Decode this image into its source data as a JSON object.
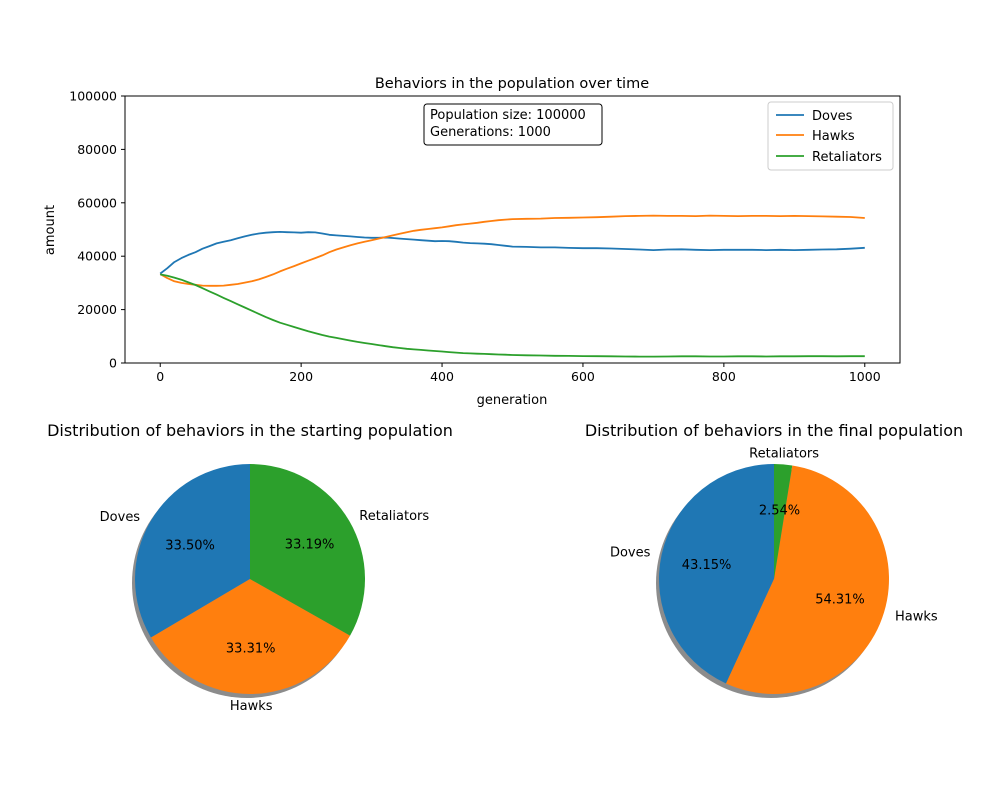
{
  "chart_data": [
    {
      "type": "line",
      "title": "Behaviors in the population over time",
      "xlabel": "generation",
      "ylabel": "amount",
      "xlim": [
        -50,
        1050
      ],
      "ylim": [
        0,
        100000
      ],
      "xticks": [
        0,
        200,
        400,
        600,
        800,
        1000
      ],
      "xtick_labels": [
        "0",
        "200",
        "400",
        "600",
        "800",
        "1000"
      ],
      "yticks": [
        0,
        20000,
        40000,
        60000,
        80000,
        100000
      ],
      "ytick_labels": [
        "0",
        "20000",
        "40000",
        "60000",
        "80000",
        "100000"
      ],
      "grid": false,
      "legend_position": "top-right",
      "annotation_lines": [
        "Population size: 100000",
        "Generations: 1000"
      ],
      "series": [
        {
          "name": "Doves",
          "color": "#1f77b4",
          "x": [
            0,
            10,
            20,
            30,
            40,
            50,
            60,
            70,
            80,
            90,
            100,
            110,
            120,
            130,
            140,
            150,
            160,
            170,
            180,
            190,
            200,
            210,
            220,
            230,
            240,
            250,
            260,
            270,
            280,
            290,
            300,
            310,
            320,
            330,
            340,
            350,
            360,
            370,
            380,
            390,
            400,
            410,
            420,
            430,
            440,
            450,
            460,
            470,
            480,
            490,
            500,
            520,
            540,
            560,
            580,
            600,
            620,
            640,
            660,
            680,
            700,
            720,
            740,
            760,
            780,
            800,
            820,
            840,
            860,
            880,
            900,
            920,
            940,
            960,
            980,
            1000
          ],
          "y": [
            33500,
            35500,
            37800,
            39300,
            40500,
            41500,
            42800,
            43800,
            44800,
            45400,
            46000,
            46700,
            47400,
            48000,
            48500,
            48800,
            49000,
            49100,
            49000,
            48900,
            48800,
            49000,
            48900,
            48500,
            48000,
            47800,
            47600,
            47400,
            47200,
            47000,
            46900,
            46900,
            47000,
            46800,
            46600,
            46400,
            46200,
            46000,
            45800,
            45600,
            45700,
            45600,
            45400,
            45100,
            44900,
            44800,
            44700,
            44500,
            44200,
            43900,
            43600,
            43500,
            43300,
            43300,
            43100,
            43000,
            43000,
            42900,
            42700,
            42500,
            42300,
            42500,
            42600,
            42400,
            42300,
            42400,
            42400,
            42400,
            42300,
            42400,
            42300,
            42400,
            42500,
            42600,
            42800,
            43150
          ]
        },
        {
          "name": "Hawks",
          "color": "#ff7f0e",
          "x": [
            0,
            10,
            20,
            30,
            40,
            50,
            60,
            70,
            80,
            90,
            100,
            110,
            120,
            130,
            140,
            150,
            160,
            170,
            180,
            190,
            200,
            210,
            220,
            230,
            240,
            250,
            260,
            270,
            280,
            290,
            300,
            310,
            320,
            330,
            340,
            350,
            360,
            370,
            380,
            390,
            400,
            410,
            420,
            430,
            440,
            450,
            460,
            470,
            480,
            490,
            500,
            520,
            540,
            560,
            580,
            600,
            620,
            640,
            660,
            680,
            700,
            720,
            740,
            760,
            780,
            800,
            820,
            840,
            860,
            880,
            900,
            920,
            940,
            960,
            980,
            1000
          ],
          "y": [
            33300,
            31800,
            30600,
            30000,
            29600,
            29300,
            29000,
            28900,
            28900,
            29000,
            29300,
            29600,
            30100,
            30600,
            31300,
            32200,
            33200,
            34300,
            35300,
            36300,
            37300,
            38300,
            39300,
            40300,
            41500,
            42500,
            43300,
            44100,
            44800,
            45400,
            46000,
            46600,
            47200,
            47800,
            48400,
            49000,
            49500,
            49900,
            50200,
            50500,
            50800,
            51200,
            51600,
            51900,
            52200,
            52500,
            52900,
            53200,
            53500,
            53700,
            53900,
            54000,
            54100,
            54300,
            54400,
            54500,
            54600,
            54800,
            55000,
            55100,
            55200,
            55100,
            55100,
            55000,
            55200,
            55100,
            55000,
            55100,
            55100,
            55000,
            55100,
            55000,
            54900,
            54800,
            54700,
            54310
          ]
        },
        {
          "name": "Retaliators",
          "color": "#2ca02c",
          "x": [
            0,
            10,
            20,
            30,
            40,
            50,
            60,
            70,
            80,
            90,
            100,
            110,
            120,
            130,
            140,
            150,
            160,
            170,
            180,
            190,
            200,
            210,
            220,
            230,
            240,
            250,
            260,
            270,
            280,
            290,
            300,
            310,
            320,
            330,
            340,
            350,
            360,
            370,
            380,
            390,
            400,
            410,
            420,
            430,
            440,
            450,
            460,
            470,
            480,
            490,
            500,
            520,
            540,
            560,
            580,
            600,
            620,
            640,
            660,
            680,
            700,
            720,
            740,
            760,
            780,
            800,
            820,
            840,
            860,
            880,
            900,
            920,
            940,
            960,
            980,
            1000
          ],
          "y": [
            33200,
            32700,
            32000,
            31200,
            30200,
            29200,
            28000,
            26800,
            25600,
            24400,
            23200,
            22000,
            20800,
            19600,
            18400,
            17200,
            16100,
            15100,
            14300,
            13500,
            12700,
            11900,
            11200,
            10500,
            9900,
            9400,
            8900,
            8400,
            7900,
            7500,
            7100,
            6700,
            6300,
            5900,
            5600,
            5300,
            5100,
            4900,
            4700,
            4500,
            4300,
            4100,
            3900,
            3700,
            3600,
            3500,
            3400,
            3300,
            3200,
            3100,
            3000,
            2900,
            2800,
            2700,
            2650,
            2600,
            2550,
            2500,
            2450,
            2400,
            2400,
            2450,
            2500,
            2500,
            2450,
            2450,
            2500,
            2500,
            2450,
            2500,
            2500,
            2550,
            2550,
            2500,
            2550,
            2540
          ]
        }
      ]
    },
    {
      "type": "pie",
      "title": "Distribution of behaviors in the starting population",
      "labels": [
        "Doves",
        "Hawks",
        "Retaliators"
      ],
      "values": [
        33.5,
        33.31,
        33.19
      ],
      "value_labels": [
        "33.50%",
        "33.31%",
        "33.19%"
      ],
      "colors": [
        "#1f77b4",
        "#ff7f0e",
        "#2ca02c"
      ],
      "shadow": true
    },
    {
      "type": "pie",
      "title": "Distribution of behaviors in the final population",
      "labels": [
        "Doves",
        "Hawks",
        "Retaliators"
      ],
      "values": [
        43.15,
        54.31,
        2.54
      ],
      "value_labels": [
        "43.15%",
        "54.31%",
        "2.54%"
      ],
      "colors": [
        "#1f77b4",
        "#ff7f0e",
        "#2ca02c"
      ],
      "shadow": true
    }
  ]
}
